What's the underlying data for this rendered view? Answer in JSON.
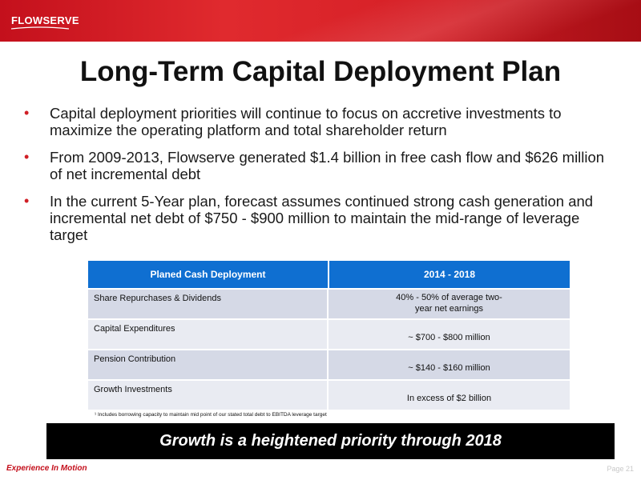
{
  "header": {
    "logo_text": "FLOWSERVE"
  },
  "slide": {
    "title": "Long-Term Capital Deployment Plan",
    "bullets": [
      "Capital deployment priorities will continue to focus on accretive investments to maximize the operating platform and total shareholder return",
      "From 2009-2013, Flowserve generated $1.4 billion in free cash flow and $626 million of net incremental debt",
      "In the current 5-Year plan, forecast assumes continued strong cash generation and incremental net debt of $750 - $900 million to maintain the mid-range of leverage target"
    ],
    "bullet_symbol": "•"
  },
  "table": {
    "headers": [
      "Planed Cash Deployment",
      "2014 - 2018"
    ],
    "rows": [
      [
        "Share Repurchases & Dividends",
        "40% - 50% of average two-year net earnings"
      ],
      [
        "Capital Expenditures",
        "~ $700 - $800 million"
      ],
      [
        "Pension Contribution",
        "~ $140 - $160 million"
      ],
      [
        "Growth Investments",
        "In excess of $2 billion"
      ]
    ],
    "footnote": "¹ Includes borrowing capacity to maintain mid point of our stated total debt to EBITDA leverage target"
  },
  "banner": {
    "text": "Growth is a heightened priority through 2018"
  },
  "footer": {
    "tagline": "Experience In Motion",
    "page": "Page 21"
  },
  "colors": {
    "brand_red": "#d01f26",
    "table_header_blue": "#0f6fd1",
    "banner_black": "#000000"
  }
}
